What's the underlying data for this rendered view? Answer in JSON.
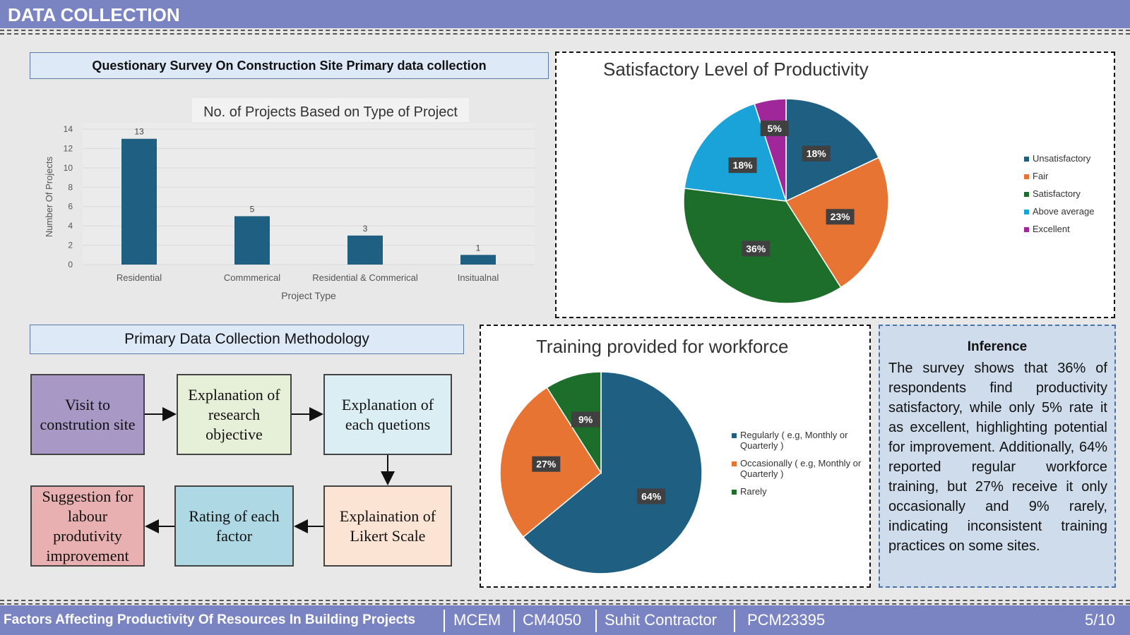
{
  "header": {
    "title": "DATA COLLECTION"
  },
  "survey": {
    "title": "Questionary Survey On Construction Site Primary data collection"
  },
  "bar_chart_title": "No. of Projects Based on Type of Project",
  "methodology": {
    "title": "Primary Data Collection Methodology",
    "steps": [
      "Visit to constrution site",
      "Explanation of research objective",
      "Explanation of each quetions",
      "Explaination of Likert Scale",
      "Rating of each factor",
      "Suggestion for labour produtivity improvement"
    ]
  },
  "inference": {
    "title": "Inference",
    "text": "The survey shows that 36% of respondents find productivity satisfactory, while only 5% rate it as excellent, highlighting potential for improvement. Additionally, 64% reported regular workforce training, but 27% receive it only occasionally and 9% rarely, indicating inconsistent training practices on some sites."
  },
  "footer": {
    "project": "Factors Affecting Productivity Of Resources In Building Projects",
    "program": "MCEM",
    "course": "CM4050",
    "author": "Suhit Contractor",
    "id": "PCM23395",
    "page": "5/10"
  },
  "chart_data": [
    {
      "type": "bar",
      "title": "No. of Projects Based on Type of Project",
      "categories": [
        "Residential",
        "Commmerical",
        "Residential & Commerical",
        "Insitualnal"
      ],
      "values": [
        13,
        5,
        3,
        1
      ],
      "xlabel": "Project Type",
      "ylabel": "Number Of Projects",
      "ylim": [
        0,
        14
      ],
      "yticks": [
        0,
        2,
        4,
        6,
        8,
        10,
        12,
        14
      ],
      "color": "#1f5f82",
      "grid": true
    },
    {
      "type": "pie",
      "title": "Satisfactory Level of Productivity",
      "labels": [
        "Unsatisfactory",
        "Fair",
        "Satisfactory",
        "Above average",
        "Excellent"
      ],
      "values": [
        18,
        23,
        36,
        18,
        5
      ],
      "colors": [
        "#1f5f82",
        "#e87433",
        "#1c6e2a",
        "#1aa3d9",
        "#a0279a"
      ],
      "legend": "right"
    },
    {
      "type": "pie",
      "title": "Training provided for workforce",
      "labels": [
        "Regularly ( e.g, Monthly or Quarterly )",
        "Occasionally ( e.g, Monthly or Quarterly )",
        "Rarely"
      ],
      "values": [
        64,
        27,
        9
      ],
      "colors": [
        "#1f5f82",
        "#e87433",
        "#1c6e2a"
      ],
      "legend": "right"
    }
  ]
}
